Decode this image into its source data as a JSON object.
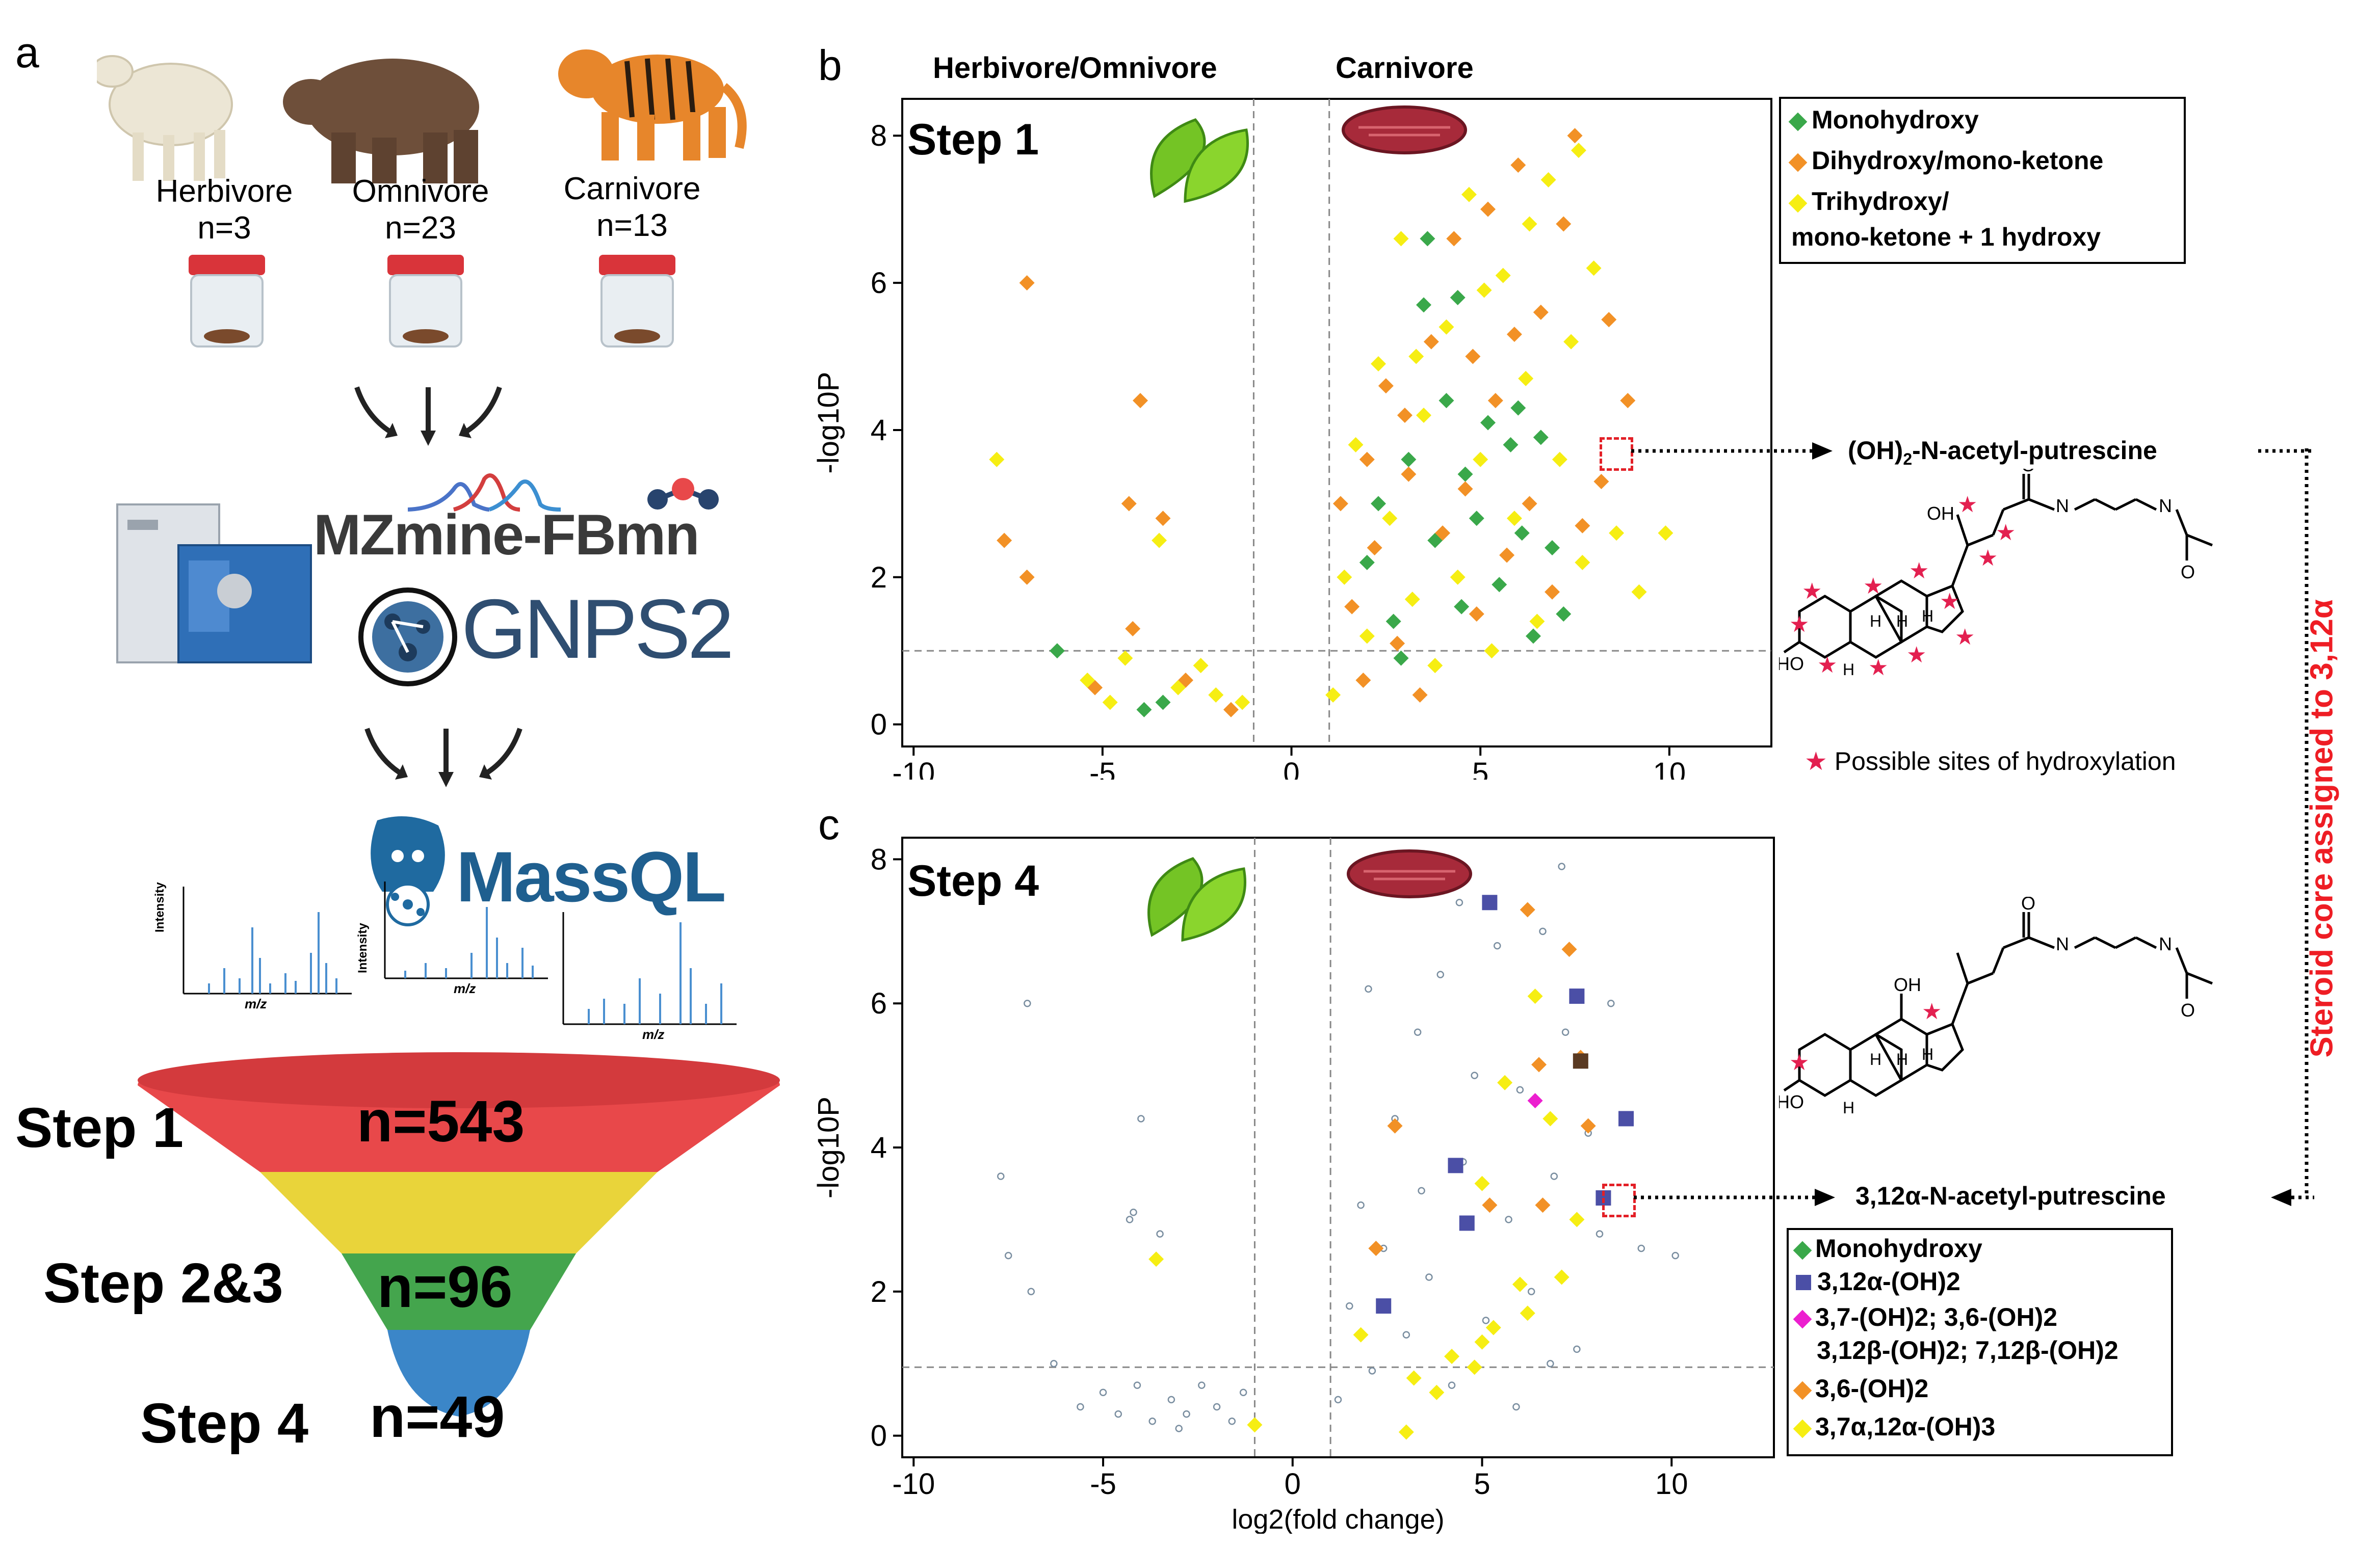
{
  "panel_a": {
    "letter": "a",
    "animals": [
      {
        "label": "Herbivore",
        "n": "n=3"
      },
      {
        "label": "Omnivore",
        "n": "n=23"
      },
      {
        "label": "Carnivore",
        "n": "n=13"
      }
    ],
    "tools": {
      "mzmine": "MZmine-FBmn",
      "gnps": "GNPS2",
      "massql": "MassQL"
    },
    "spectrum_axes": {
      "y": "Intensity",
      "x": "m/z"
    },
    "funnel": [
      {
        "label": "Step 1",
        "n": "n=543",
        "color": "#e8484a"
      },
      {
        "label": "Step 2&3",
        "n": "n=96",
        "color": "#e9d43a"
      },
      {
        "label": "Step 4",
        "n": "n=49",
        "color": "#3b86c8"
      }
    ]
  },
  "panel_b": {
    "letter": "b",
    "header_left": "Herbivore/Omnivore",
    "header_right": "Carnivore",
    "step": "Step 1",
    "legend": [
      {
        "label": "Monohydroxy",
        "color": "#3aa84a",
        "shape": "diamond"
      },
      {
        "label": "Dihydroxy/mono-ketone",
        "color": "#f29126",
        "shape": "diamond"
      },
      {
        "label": "Trihydroxy/",
        "label2": "mono-ketone + 1 hydroxy",
        "color": "#f6ee13",
        "shape": "diamond"
      }
    ],
    "annotation": "(OH)2-N-acetyl-putrescine",
    "annotation_main": "(OH)",
    "annotation_sub": "2",
    "annotation_rest": "-N-acetyl-putrescine",
    "hydroxylation_note": "Possible sites of hydroxylation"
  },
  "panel_c": {
    "letter": "c",
    "step": "Step 4",
    "annotation": "3,12α-N-acetyl-putrescine",
    "legend": [
      {
        "label": "Monohydroxy",
        "color": "#3aa84a",
        "shape": "diamond"
      },
      {
        "label": "3,12α-(OH)2",
        "color": "#4b4fa6",
        "shape": "square"
      },
      {
        "label": "3,7-(OH)2; 3,6-(OH)2",
        "label2": "3,12β-(OH)2; 7,12β-(OH)2",
        "color": "#ec1fcf",
        "shape": "diamond"
      },
      {
        "label": "3,6-(OH)2",
        "color": "#f29126",
        "shape": "diamond"
      },
      {
        "label": "3,7α,12α-(OH)3",
        "color": "#f6ee13",
        "shape": "diamond"
      }
    ]
  },
  "side_label": "Steroid core assigned to 3,12α",
  "structure_labels": {
    "OH": "OH",
    "HO": "HO",
    "H": "H",
    "N_H": "H",
    "N": "N",
    "O": "O"
  },
  "chart_data": [
    {
      "type": "scatter",
      "title": "Step 1",
      "xlabel": "",
      "ylabel": "-log10P",
      "xlim": [
        -10.3,
        12.7
      ],
      "ylim": [
        -0.3,
        8.5
      ],
      "xticks": [
        -10,
        -5,
        0,
        5,
        10
      ],
      "yticks": [
        0,
        2,
        4,
        6,
        8
      ],
      "threshold_lines": {
        "x": [
          -1,
          1
        ],
        "y": 1
      },
      "series": [
        {
          "name": "Monohydroxy",
          "color": "#3aa84a",
          "points": [
            [
              -6.2,
              1.0
            ],
            [
              -3.9,
              0.2
            ],
            [
              -3.4,
              0.3
            ],
            [
              2.0,
              2.2
            ],
            [
              2.3,
              3.0
            ],
            [
              2.7,
              1.4
            ],
            [
              3.1,
              3.6
            ],
            [
              3.5,
              5.7
            ],
            [
              3.8,
              2.5
            ],
            [
              4.1,
              4.4
            ],
            [
              4.5,
              1.6
            ],
            [
              4.6,
              3.4
            ],
            [
              4.9,
              2.8
            ],
            [
              5.2,
              4.1
            ],
            [
              5.5,
              1.9
            ],
            [
              5.8,
              3.8
            ],
            [
              6.1,
              2.6
            ],
            [
              6.4,
              1.2
            ],
            [
              6.6,
              3.9
            ],
            [
              6.9,
              2.4
            ],
            [
              7.2,
              1.5
            ],
            [
              3.6,
              6.6
            ],
            [
              4.4,
              5.8
            ],
            [
              2.9,
              0.9
            ],
            [
              6.0,
              4.3
            ]
          ]
        },
        {
          "name": "Dihydroxy/mono-ketone",
          "color": "#f29126",
          "points": [
            [
              -7.0,
              6.0
            ],
            [
              -7.6,
              2.5
            ],
            [
              -7.0,
              2.0
            ],
            [
              -4.0,
              4.4
            ],
            [
              -4.3,
              3.0
            ],
            [
              -3.4,
              2.8
            ],
            [
              -4.2,
              1.3
            ],
            [
              -5.2,
              0.5
            ],
            [
              -2.8,
              0.6
            ],
            [
              -1.6,
              0.2
            ],
            [
              1.3,
              3.0
            ],
            [
              1.6,
              1.6
            ],
            [
              1.9,
              0.6
            ],
            [
              2.2,
              2.4
            ],
            [
              2.5,
              4.6
            ],
            [
              2.8,
              1.1
            ],
            [
              3.1,
              3.4
            ],
            [
              3.4,
              0.4
            ],
            [
              3.7,
              5.2
            ],
            [
              4.0,
              2.6
            ],
            [
              4.3,
              6.6
            ],
            [
              4.6,
              3.2
            ],
            [
              4.9,
              1.5
            ],
            [
              5.2,
              7.0
            ],
            [
              5.4,
              4.4
            ],
            [
              5.7,
              2.3
            ],
            [
              6.0,
              7.6
            ],
            [
              6.3,
              3.0
            ],
            [
              6.6,
              5.6
            ],
            [
              6.9,
              1.8
            ],
            [
              7.2,
              6.8
            ],
            [
              7.5,
              8.0
            ],
            [
              8.2,
              3.3
            ],
            [
              8.9,
              4.4
            ],
            [
              8.4,
              5.5
            ],
            [
              7.7,
              2.7
            ],
            [
              3.0,
              4.2
            ],
            [
              4.8,
              5.0
            ],
            [
              5.9,
              5.3
            ],
            [
              2.0,
              3.6
            ]
          ]
        },
        {
          "name": "Trihydroxy/mono-ketone + 1 hydroxy",
          "color": "#f6ee13",
          "points": [
            [
              -7.8,
              3.6
            ],
            [
              -3.5,
              2.5
            ],
            [
              -4.4,
              0.9
            ],
            [
              -5.4,
              0.6
            ],
            [
              -4.8,
              0.3
            ],
            [
              -3.0,
              0.5
            ],
            [
              -2.4,
              0.8
            ],
            [
              -2.0,
              0.4
            ],
            [
              -1.3,
              0.3
            ],
            [
              1.1,
              0.4
            ],
            [
              1.4,
              2.0
            ],
            [
              1.7,
              3.8
            ],
            [
              2.0,
              1.2
            ],
            [
              2.3,
              4.9
            ],
            [
              2.6,
              2.8
            ],
            [
              2.9,
              6.6
            ],
            [
              3.2,
              1.7
            ],
            [
              3.5,
              4.2
            ],
            [
              3.8,
              0.8
            ],
            [
              4.1,
              5.4
            ],
            [
              4.4,
              2.0
            ],
            [
              4.7,
              7.2
            ],
            [
              5.0,
              3.6
            ],
            [
              5.3,
              1.0
            ],
            [
              5.6,
              6.1
            ],
            [
              5.9,
              2.8
            ],
            [
              6.2,
              4.7
            ],
            [
              6.5,
              1.4
            ],
            [
              6.8,
              7.4
            ],
            [
              7.1,
              3.6
            ],
            [
              7.4,
              5.2
            ],
            [
              7.7,
              2.2
            ],
            [
              8.0,
              6.2
            ],
            [
              8.6,
              2.6
            ],
            [
              9.2,
              1.8
            ],
            [
              9.9,
              2.6
            ],
            [
              7.6,
              7.8
            ],
            [
              6.3,
              6.8
            ],
            [
              5.1,
              5.9
            ],
            [
              3.3,
              5.0
            ]
          ]
        }
      ]
    },
    {
      "type": "scatter",
      "title": "Step 4",
      "xlabel": "log2(fold change)",
      "ylabel": "-log10P",
      "xlim": [
        -10.3,
        12.7
      ],
      "ylim": [
        -0.3,
        8.3
      ],
      "xticks": [
        -10,
        -5,
        0,
        5,
        10
      ],
      "yticks": [
        0,
        2,
        4,
        6,
        8
      ],
      "threshold_lines": {
        "x": [
          -1,
          1
        ],
        "y": 0.95
      },
      "series": [
        {
          "name": "background",
          "color": "#7a8ea0",
          "points": [
            [
              -7.0,
              6.0
            ],
            [
              -7.7,
              3.6
            ],
            [
              -7.5,
              2.5
            ],
            [
              -6.9,
              2.0
            ],
            [
              -6.3,
              1.0
            ],
            [
              -4.3,
              3.0
            ],
            [
              -4.2,
              3.1
            ],
            [
              -4.0,
              4.4
            ],
            [
              -3.5,
              2.8
            ],
            [
              -5.0,
              0.6
            ],
            [
              -4.6,
              0.3
            ],
            [
              -4.1,
              0.7
            ],
            [
              -3.7,
              0.2
            ],
            [
              -3.2,
              0.5
            ],
            [
              -2.8,
              0.3
            ],
            [
              -2.4,
              0.7
            ],
            [
              -2.0,
              0.4
            ],
            [
              -1.6,
              0.2
            ],
            [
              -1.3,
              0.6
            ],
            [
              -5.6,
              0.4
            ],
            [
              -3.0,
              0.1
            ],
            [
              1.2,
              0.5
            ],
            [
              1.5,
              1.8
            ],
            [
              1.8,
              3.2
            ],
            [
              2.1,
              0.9
            ],
            [
              2.4,
              2.6
            ],
            [
              2.7,
              4.4
            ],
            [
              3.0,
              1.4
            ],
            [
              3.3,
              5.6
            ],
            [
              3.6,
              2.2
            ],
            [
              3.9,
              6.4
            ],
            [
              4.2,
              0.7
            ],
            [
              4.5,
              3.8
            ],
            [
              4.8,
              5.0
            ],
            [
              5.1,
              1.6
            ],
            [
              5.4,
              6.8
            ],
            [
              5.7,
              3.0
            ],
            [
              6.0,
              4.8
            ],
            [
              6.3,
              2.0
            ],
            [
              6.6,
              7.0
            ],
            [
              6.9,
              3.6
            ],
            [
              7.2,
              5.6
            ],
            [
              7.5,
              1.2
            ],
            [
              7.8,
              4.2
            ],
            [
              8.1,
              2.8
            ],
            [
              8.4,
              6.0
            ],
            [
              9.2,
              2.6
            ],
            [
              10.1,
              2.5
            ],
            [
              2.0,
              6.2
            ],
            [
              3.4,
              3.4
            ],
            [
              4.4,
              7.4
            ],
            [
              5.9,
              0.4
            ],
            [
              6.8,
              1.0
            ],
            [
              7.1,
              7.9
            ]
          ]
        },
        {
          "name": "3,12α-(OH)2",
          "color": "#4b4fa6",
          "points": [
            [
              5.2,
              7.4
            ],
            [
              7.5,
              6.1
            ],
            [
              8.8,
              4.4
            ],
            [
              4.3,
              3.75
            ],
            [
              4.6,
              2.95
            ],
            [
              2.4,
              1.8
            ],
            [
              8.2,
              3.3
            ]
          ]
        },
        {
          "name": "3,7-(OH)2; 3,6-(OH)2 3,12β-(OH)2; 7,12β-(OH)2",
          "color": "#ec1fcf",
          "points": [
            [
              6.4,
              4.65
            ]
          ]
        },
        {
          "name": "3,6-(OH)2",
          "color": "#f29126",
          "points": [
            [
              6.2,
              7.3
            ],
            [
              7.3,
              6.75
            ],
            [
              6.5,
              5.15
            ],
            [
              7.6,
              5.25
            ],
            [
              7.8,
              4.3
            ],
            [
              2.7,
              4.3
            ],
            [
              6.6,
              3.2
            ],
            [
              5.2,
              3.2
            ],
            [
              2.2,
              2.6
            ]
          ]
        },
        {
          "name": "3,7α,12α-(OH)3",
          "color": "#f6ee13",
          "points": [
            [
              -3.6,
              2.45
            ],
            [
              -1.0,
              0.15
            ],
            [
              6.4,
              6.1
            ],
            [
              5.6,
              4.9
            ],
            [
              6.8,
              4.4
            ],
            [
              5.0,
              3.5
            ],
            [
              7.5,
              3.0
            ],
            [
              6.0,
              2.1
            ],
            [
              5.3,
              1.5
            ],
            [
              5.0,
              1.3
            ],
            [
              4.2,
              1.1
            ],
            [
              3.2,
              0.8
            ],
            [
              3.0,
              0.05
            ],
            [
              4.8,
              0.95
            ],
            [
              1.8,
              1.4
            ],
            [
              7.1,
              2.2
            ],
            [
              6.2,
              1.7
            ],
            [
              3.8,
              0.6
            ]
          ]
        },
        {
          "name": "brown",
          "color": "#5a3a22",
          "points": [
            [
              7.6,
              5.2
            ]
          ]
        }
      ]
    }
  ]
}
